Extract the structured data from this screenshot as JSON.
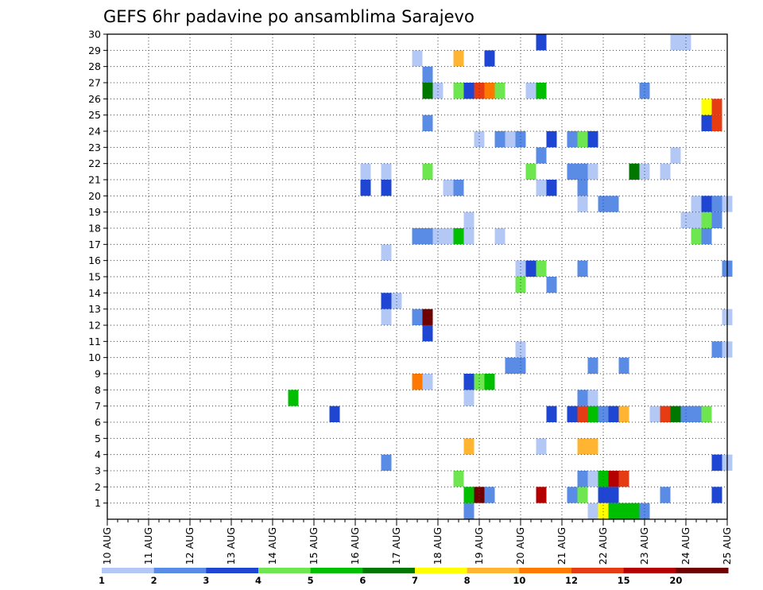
{
  "chart_data": {
    "type": "heatmap",
    "title": "GEFS 6hr padavine po ansamblima Sarajevo",
    "x_tick_labels": [
      "10 AUG",
      "11 AUG",
      "12 AUG",
      "13 AUG",
      "14 AUG",
      "15 AUG",
      "16 AUG",
      "17 AUG",
      "18 AUG",
      "19 AUG",
      "20 AUG",
      "21 AUG",
      "22 AUG",
      "23 AUG",
      "24 AUG",
      "25 AUG"
    ],
    "y_tick_labels": [
      "1",
      "2",
      "3",
      "4",
      "5",
      "6",
      "7",
      "8",
      "9",
      "10",
      "11",
      "12",
      "13",
      "14",
      "15",
      "16",
      "17",
      "18",
      "19",
      "20",
      "21",
      "22",
      "23",
      "24",
      "25",
      "26",
      "27",
      "28",
      "29",
      "30"
    ],
    "x_range": [
      0,
      60
    ],
    "y_range": [
      0,
      30
    ],
    "grid": true,
    "colorbar": {
      "labels": [
        "1",
        "2",
        "3",
        "4",
        "5",
        "6",
        "7",
        "8",
        "10",
        "12",
        "15",
        "20"
      ],
      "colors": [
        "#b4c8f5",
        "#5a8ce6",
        "#1e46d2",
        "#6ee650",
        "#00be00",
        "#007800",
        "#ffff00",
        "#ffb432",
        "#ff7800",
        "#e63c14",
        "#b40000",
        "#6e0000"
      ]
    },
    "cells": [
      {
        "t": 59,
        "m": 1,
        "c": 3
      },
      {
        "t": 35,
        "m": 0,
        "c": 2
      },
      {
        "t": 35,
        "m": 1,
        "c": 5
      },
      {
        "t": 36,
        "m": 1,
        "c": 12
      },
      {
        "t": 37,
        "m": 1,
        "c": 2
      },
      {
        "t": 42,
        "m": 1,
        "c": 11
      },
      {
        "t": 45,
        "m": 1,
        "c": 2
      },
      {
        "t": 46,
        "m": 1,
        "c": 4
      },
      {
        "t": 48,
        "m": 1,
        "c": 3
      },
      {
        "t": 49,
        "m": 1,
        "c": 3
      },
      {
        "t": 54,
        "m": 1,
        "c": 2
      },
      {
        "t": 47,
        "m": 0,
        "c": 1
      },
      {
        "t": 48,
        "m": 0,
        "c": 7
      },
      {
        "t": 49,
        "m": 0,
        "c": 5
      },
      {
        "t": 50,
        "m": 0,
        "c": 5
      },
      {
        "t": 51,
        "m": 0,
        "c": 5
      },
      {
        "t": 52,
        "m": 0,
        "c": 2
      },
      {
        "t": 34,
        "m": 2,
        "c": 4
      },
      {
        "t": 46,
        "m": 2,
        "c": 2
      },
      {
        "t": 47,
        "m": 2,
        "c": 1
      },
      {
        "t": 48,
        "m": 2,
        "c": 5
      },
      {
        "t": 49,
        "m": 2,
        "c": 11
      },
      {
        "t": 50,
        "m": 2,
        "c": 10
      },
      {
        "t": 27,
        "m": 3,
        "c": 2
      },
      {
        "t": 59,
        "m": 3,
        "c": 3
      },
      {
        "t": 60,
        "m": 3,
        "c": 1
      },
      {
        "t": 35,
        "m": 4,
        "c": 8
      },
      {
        "t": 42,
        "m": 4,
        "c": 1
      },
      {
        "t": 46,
        "m": 4,
        "c": 8
      },
      {
        "t": 47,
        "m": 4,
        "c": 8
      },
      {
        "t": 22,
        "m": 6,
        "c": 3
      },
      {
        "t": 43,
        "m": 6,
        "c": 3
      },
      {
        "t": 45,
        "m": 6,
        "c": 3
      },
      {
        "t": 46,
        "m": 6,
        "c": 10
      },
      {
        "t": 47,
        "m": 6,
        "c": 5
      },
      {
        "t": 48,
        "m": 6,
        "c": 2
      },
      {
        "t": 49,
        "m": 6,
        "c": 3
      },
      {
        "t": 50,
        "m": 6,
        "c": 8
      },
      {
        "t": 53,
        "m": 6,
        "c": 1
      },
      {
        "t": 54,
        "m": 6,
        "c": 10
      },
      {
        "t": 55,
        "m": 6,
        "c": 6
      },
      {
        "t": 56,
        "m": 6,
        "c": 2
      },
      {
        "t": 57,
        "m": 6,
        "c": 2
      },
      {
        "t": 58,
        "m": 6,
        "c": 4
      },
      {
        "t": 18,
        "m": 7,
        "c": 5
      },
      {
        "t": 35,
        "m": 7,
        "c": 1
      },
      {
        "t": 46,
        "m": 7,
        "c": 2
      },
      {
        "t": 47,
        "m": 7,
        "c": 1
      },
      {
        "t": 30,
        "m": 8,
        "c": 9
      },
      {
        "t": 31,
        "m": 8,
        "c": 1
      },
      {
        "t": 35,
        "m": 8,
        "c": 3
      },
      {
        "t": 36,
        "m": 8,
        "c": 4
      },
      {
        "t": 37,
        "m": 8,
        "c": 5
      },
      {
        "t": 39,
        "m": 9,
        "c": 2
      },
      {
        "t": 40,
        "m": 9,
        "c": 2
      },
      {
        "t": 47,
        "m": 9,
        "c": 2
      },
      {
        "t": 50,
        "m": 9,
        "c": 2
      },
      {
        "t": 40,
        "m": 10,
        "c": 1
      },
      {
        "t": 59,
        "m": 10,
        "c": 2
      },
      {
        "t": 60,
        "m": 10,
        "c": 1
      },
      {
        "t": 31,
        "m": 11,
        "c": 3
      },
      {
        "t": 27,
        "m": 12,
        "c": 1
      },
      {
        "t": 30,
        "m": 12,
        "c": 2
      },
      {
        "t": 31,
        "m": 12,
        "c": 12
      },
      {
        "t": 60,
        "m": 12,
        "c": 1
      },
      {
        "t": 27,
        "m": 13,
        "c": 3
      },
      {
        "t": 28,
        "m": 13,
        "c": 1
      },
      {
        "t": 40,
        "m": 14,
        "c": 4
      },
      {
        "t": 43,
        "m": 14,
        "c": 2
      },
      {
        "t": 40,
        "m": 15,
        "c": 1
      },
      {
        "t": 41,
        "m": 15,
        "c": 3
      },
      {
        "t": 42,
        "m": 15,
        "c": 4
      },
      {
        "t": 46,
        "m": 15,
        "c": 2
      },
      {
        "t": 60,
        "m": 15,
        "c": 2
      },
      {
        "t": 27,
        "m": 16,
        "c": 1
      },
      {
        "t": 30,
        "m": 17,
        "c": 2
      },
      {
        "t": 31,
        "m": 17,
        "c": 2
      },
      {
        "t": 32,
        "m": 17,
        "c": 1
      },
      {
        "t": 33,
        "m": 17,
        "c": 1
      },
      {
        "t": 34,
        "m": 17,
        "c": 5
      },
      {
        "t": 35,
        "m": 17,
        "c": 1
      },
      {
        "t": 38,
        "m": 17,
        "c": 1
      },
      {
        "t": 57,
        "m": 17,
        "c": 4
      },
      {
        "t": 58,
        "m": 17,
        "c": 2
      },
      {
        "t": 35,
        "m": 18,
        "c": 1
      },
      {
        "t": 56,
        "m": 18,
        "c": 1
      },
      {
        "t": 57,
        "m": 18,
        "c": 1
      },
      {
        "t": 58,
        "m": 18,
        "c": 4
      },
      {
        "t": 59,
        "m": 18,
        "c": 2
      },
      {
        "t": 46,
        "m": 19,
        "c": 1
      },
      {
        "t": 48,
        "m": 19,
        "c": 2
      },
      {
        "t": 49,
        "m": 19,
        "c": 2
      },
      {
        "t": 57,
        "m": 19,
        "c": 1
      },
      {
        "t": 58,
        "m": 19,
        "c": 3
      },
      {
        "t": 59,
        "m": 19,
        "c": 2
      },
      {
        "t": 60,
        "m": 19,
        "c": 1
      },
      {
        "t": 25,
        "m": 20,
        "c": 3
      },
      {
        "t": 27,
        "m": 20,
        "c": 3
      },
      {
        "t": 33,
        "m": 20,
        "c": 1
      },
      {
        "t": 34,
        "m": 20,
        "c": 2
      },
      {
        "t": 42,
        "m": 20,
        "c": 1
      },
      {
        "t": 43,
        "m": 20,
        "c": 3
      },
      {
        "t": 46,
        "m": 20,
        "c": 2
      },
      {
        "t": 25,
        "m": 21,
        "c": 1
      },
      {
        "t": 27,
        "m": 21,
        "c": 1
      },
      {
        "t": 31,
        "m": 21,
        "c": 4
      },
      {
        "t": 41,
        "m": 21,
        "c": 4
      },
      {
        "t": 45,
        "m": 21,
        "c": 2
      },
      {
        "t": 46,
        "m": 21,
        "c": 2
      },
      {
        "t": 47,
        "m": 21,
        "c": 1
      },
      {
        "t": 51,
        "m": 21,
        "c": 6
      },
      {
        "t": 52,
        "m": 21,
        "c": 1
      },
      {
        "t": 54,
        "m": 21,
        "c": 1
      },
      {
        "t": 42,
        "m": 22,
        "c": 2
      },
      {
        "t": 55,
        "m": 22,
        "c": 1
      },
      {
        "t": 36,
        "m": 23,
        "c": 1
      },
      {
        "t": 38,
        "m": 23,
        "c": 2
      },
      {
        "t": 39,
        "m": 23,
        "c": 1
      },
      {
        "t": 40,
        "m": 23,
        "c": 2
      },
      {
        "t": 43,
        "m": 23,
        "c": 3
      },
      {
        "t": 45,
        "m": 23,
        "c": 2
      },
      {
        "t": 46,
        "m": 23,
        "c": 4
      },
      {
        "t": 47,
        "m": 23,
        "c": 3
      },
      {
        "t": 31,
        "m": 24,
        "c": 2
      },
      {
        "t": 58,
        "m": 24,
        "c": 3
      },
      {
        "t": 59,
        "m": 24,
        "c": 10
      },
      {
        "t": 58,
        "m": 25,
        "c": 7
      },
      {
        "t": 59,
        "m": 25,
        "c": 10
      },
      {
        "t": 31,
        "m": 26,
        "c": 6
      },
      {
        "t": 32,
        "m": 26,
        "c": 1
      },
      {
        "t": 34,
        "m": 26,
        "c": 4
      },
      {
        "t": 35,
        "m": 26,
        "c": 3
      },
      {
        "t": 36,
        "m": 26,
        "c": 10
      },
      {
        "t": 37,
        "m": 26,
        "c": 9
      },
      {
        "t": 38,
        "m": 26,
        "c": 4
      },
      {
        "t": 41,
        "m": 26,
        "c": 1
      },
      {
        "t": 42,
        "m": 26,
        "c": 5
      },
      {
        "t": 52,
        "m": 26,
        "c": 2
      },
      {
        "t": 31,
        "m": 27,
        "c": 2
      },
      {
        "t": 30,
        "m": 28,
        "c": 1
      },
      {
        "t": 34,
        "m": 28,
        "c": 8
      },
      {
        "t": 37,
        "m": 28,
        "c": 3
      },
      {
        "t": 42,
        "m": 29,
        "c": 3
      },
      {
        "t": 55,
        "m": 29,
        "c": 1
      },
      {
        "t": 56,
        "m": 29,
        "c": 1
      }
    ]
  }
}
